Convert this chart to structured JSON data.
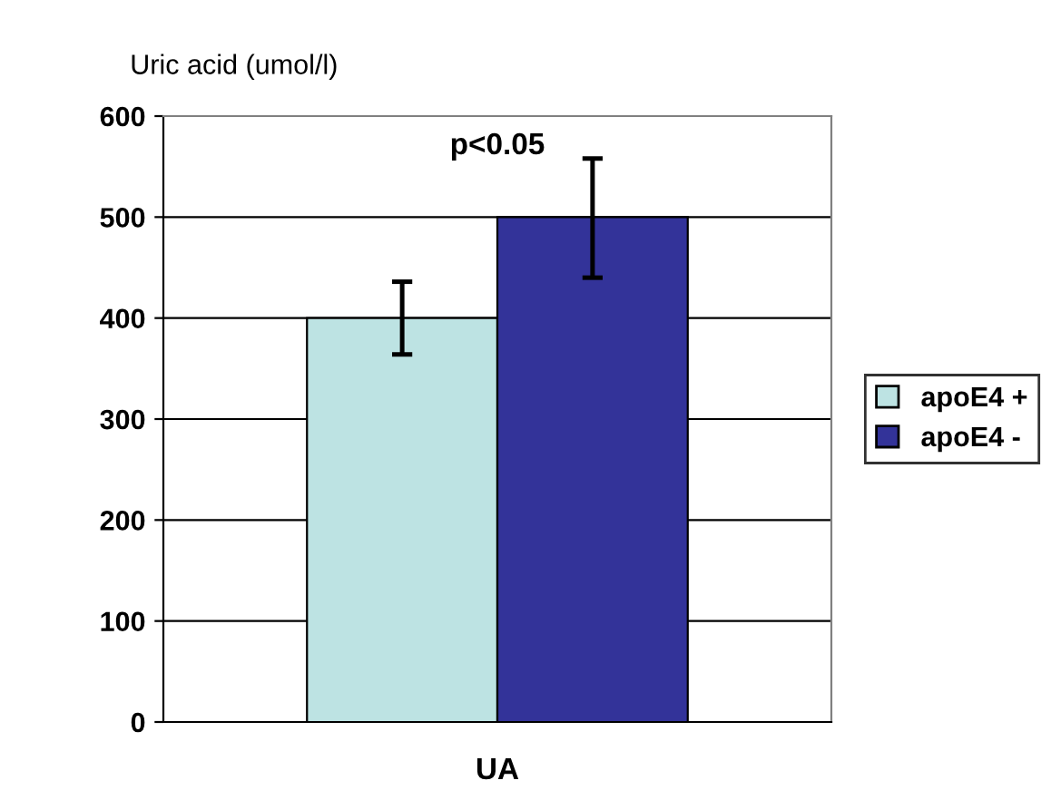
{
  "chart_data": {
    "type": "bar",
    "ylabel": "Uric acid (umol/l)",
    "categories": [
      "UA"
    ],
    "series": [
      {
        "name": "apoE4 +",
        "color": "#bde3e3",
        "values": [
          400
        ],
        "errors": [
          [
            364,
            436
          ]
        ]
      },
      {
        "name": "apoE4 -",
        "color": "#333399",
        "values": [
          500
        ],
        "errors": [
          [
            440,
            558
          ]
        ]
      }
    ],
    "ylim": [
      0,
      600
    ],
    "yticks": [
      0,
      100,
      200,
      300,
      400,
      500,
      600
    ],
    "grid": "y",
    "legend": "right",
    "annotations": [
      "p<0.05"
    ]
  }
}
